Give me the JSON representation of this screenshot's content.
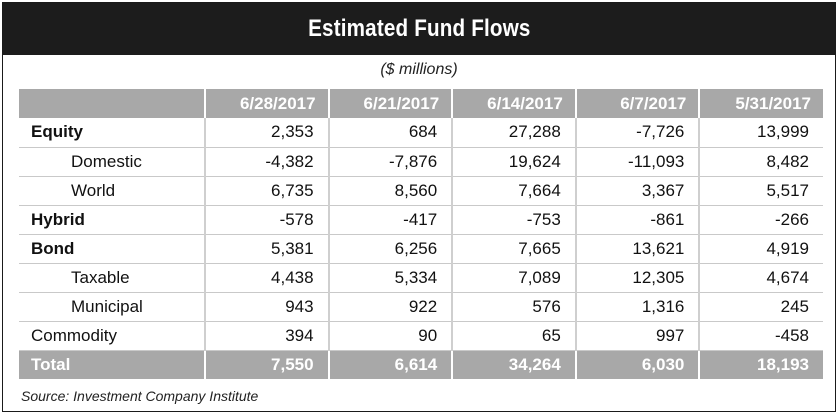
{
  "title": "Estimated Fund Flows",
  "subtitle": "($ millions)",
  "source": "Source: Investment Company Institute",
  "colors": {
    "title_bg": "#1c1c1c",
    "header_bg": "#a8a8a8",
    "header_text": "#ffffff"
  },
  "chart_data": {
    "type": "table",
    "title": "Estimated Fund Flows",
    "subtitle": "($ millions)",
    "columns": [
      "",
      "6/28/2017",
      "6/21/2017",
      "6/14/2017",
      "6/7/2017",
      "5/31/2017"
    ],
    "rows": [
      {
        "label": "Equity",
        "style": "bold",
        "values": [
          "2,353",
          "684",
          "27,288",
          "-7,726",
          "13,999"
        ]
      },
      {
        "label": "Domestic",
        "style": "indent",
        "values": [
          "-4,382",
          "-7,876",
          "19,624",
          "-11,093",
          "8,482"
        ]
      },
      {
        "label": "World",
        "style": "indent",
        "values": [
          "6,735",
          "8,560",
          "7,664",
          "3,367",
          "5,517"
        ]
      },
      {
        "label": "Hybrid",
        "style": "bold",
        "values": [
          "-578",
          "-417",
          "-753",
          "-861",
          "-266"
        ]
      },
      {
        "label": "Bond",
        "style": "bold",
        "values": [
          "5,381",
          "6,256",
          "7,665",
          "13,621",
          "4,919"
        ]
      },
      {
        "label": "Taxable",
        "style": "indent",
        "values": [
          "4,438",
          "5,334",
          "7,089",
          "12,305",
          "4,674"
        ]
      },
      {
        "label": "Municipal",
        "style": "indent",
        "values": [
          "943",
          "922",
          "576",
          "1,316",
          "245"
        ]
      },
      {
        "label": "Commodity",
        "style": "plain",
        "values": [
          "394",
          "90",
          "65",
          "997",
          "-458"
        ]
      },
      {
        "label": "Total",
        "style": "total",
        "values": [
          "7,550",
          "6,614",
          "34,264",
          "6,030",
          "18,193"
        ]
      }
    ],
    "source": "Source: Investment Company Institute"
  }
}
